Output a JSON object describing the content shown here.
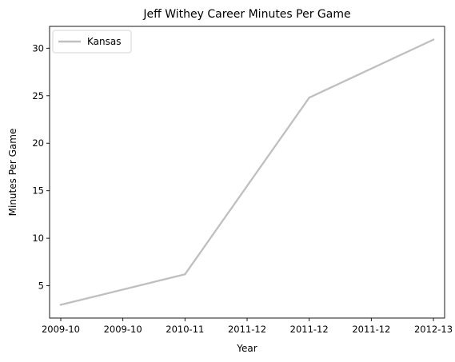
{
  "chart_data": {
    "type": "line",
    "title": "Jeff Withey Career Minutes Per Game",
    "xlabel": "Year",
    "ylabel": "Minutes Per Game",
    "x_tick_labels": [
      "2009-10",
      "2009-10",
      "2010-11",
      "2011-12",
      "2011-12",
      "2011-12",
      "2012-13"
    ],
    "x_positions": [
      0,
      1,
      2,
      3,
      4,
      5,
      6
    ],
    "y_ticks": [
      5,
      10,
      15,
      20,
      25,
      30
    ],
    "xlim": [
      -0.18,
      6.18
    ],
    "ylim": [
      1.6,
      32.3
    ],
    "grid": false,
    "legend": {
      "placement": "top-left",
      "entries": [
        "Kansas"
      ]
    },
    "series": [
      {
        "name": "Kansas",
        "color": "#bfbfbf",
        "points": [
          {
            "x": 0,
            "label": "2009-10",
            "y": 3.0
          },
          {
            "x": 2,
            "label": "2010-11",
            "y": 6.2
          },
          {
            "x": 4,
            "label": "2011-12",
            "y": 24.8
          },
          {
            "x": 6,
            "label": "2012-13",
            "y": 30.9
          }
        ]
      }
    ]
  }
}
